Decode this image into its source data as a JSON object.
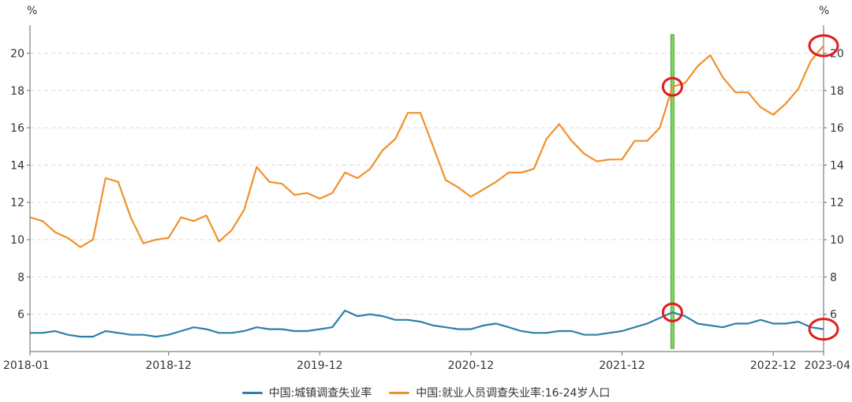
{
  "chart_data": {
    "type": "line",
    "y_unit_left": "%",
    "y_unit_right": "%",
    "ylim": [
      4,
      21.5
    ],
    "y_ticks": [
      6,
      8,
      10,
      12,
      14,
      16,
      18,
      20
    ],
    "x_tick_labels": [
      {
        "label": "2018-01",
        "index": 0
      },
      {
        "label": "2018-12",
        "index": 11
      },
      {
        "label": "2019-12",
        "index": 23
      },
      {
        "label": "2020-12",
        "index": 35
      },
      {
        "label": "2021-12",
        "index": 47
      },
      {
        "label": "2022-12",
        "index": 59
      },
      {
        "label": "2023-04",
        "index": 63
      }
    ],
    "x": [
      "2018-01",
      "2018-02",
      "2018-03",
      "2018-04",
      "2018-05",
      "2018-06",
      "2018-07",
      "2018-08",
      "2018-09",
      "2018-10",
      "2018-11",
      "2018-12",
      "2019-01",
      "2019-02",
      "2019-03",
      "2019-04",
      "2019-05",
      "2019-06",
      "2019-07",
      "2019-08",
      "2019-09",
      "2019-10",
      "2019-11",
      "2019-12",
      "2020-01",
      "2020-02",
      "2020-03",
      "2020-04",
      "2020-05",
      "2020-06",
      "2020-07",
      "2020-08",
      "2020-09",
      "2020-10",
      "2020-11",
      "2020-12",
      "2021-01",
      "2021-02",
      "2021-03",
      "2021-04",
      "2021-05",
      "2021-06",
      "2021-07",
      "2021-08",
      "2021-09",
      "2021-10",
      "2021-11",
      "2021-12",
      "2022-01",
      "2022-02",
      "2022-03",
      "2022-04",
      "2022-05",
      "2022-06",
      "2022-07",
      "2022-08",
      "2022-09",
      "2022-10",
      "2022-11",
      "2022-12",
      "2023-01",
      "2023-02",
      "2023-03",
      "2023-04"
    ],
    "series": [
      {
        "name": "中国:城镇调查失业率",
        "color": "#2e7fa6",
        "values": [
          5.0,
          5.0,
          5.1,
          4.9,
          4.8,
          4.8,
          5.1,
          5.0,
          4.9,
          4.9,
          4.8,
          4.9,
          5.1,
          5.3,
          5.2,
          5.0,
          5.0,
          5.1,
          5.3,
          5.2,
          5.2,
          5.1,
          5.1,
          5.2,
          5.3,
          6.2,
          5.9,
          6.0,
          5.9,
          5.7,
          5.7,
          5.6,
          5.4,
          5.3,
          5.2,
          5.2,
          5.4,
          5.5,
          5.3,
          5.1,
          5.0,
          5.0,
          5.1,
          5.1,
          4.9,
          4.9,
          5.0,
          5.1,
          5.3,
          5.5,
          5.8,
          6.1,
          5.9,
          5.5,
          5.4,
          5.3,
          5.5,
          5.5,
          5.7,
          5.5,
          5.5,
          5.6,
          5.3,
          5.2
        ]
      },
      {
        "name": "中国:就业人员调查失业率:16-24岁人口",
        "color": "#f0902c",
        "values": [
          11.2,
          11.0,
          10.4,
          10.1,
          9.6,
          10.0,
          13.3,
          13.1,
          11.2,
          9.8,
          10.0,
          10.1,
          11.2,
          11.0,
          11.3,
          9.9,
          10.5,
          11.6,
          13.9,
          13.1,
          13.0,
          12.4,
          12.5,
          12.2,
          12.5,
          13.6,
          13.3,
          13.8,
          14.8,
          15.4,
          16.8,
          16.8,
          15.0,
          13.2,
          12.8,
          12.3,
          12.7,
          13.1,
          13.6,
          13.6,
          13.8,
          15.4,
          16.2,
          15.3,
          14.6,
          14.2,
          14.3,
          14.3,
          15.3,
          15.3,
          16.0,
          18.2,
          18.4,
          19.3,
          19.9,
          18.7,
          17.9,
          17.9,
          17.1,
          16.7,
          17.3,
          18.1,
          19.6,
          20.4
        ]
      }
    ],
    "annotations": {
      "highlight_index": 51,
      "circle_indices_series1": [
        51,
        63
      ],
      "circle_indices_series2": [
        51,
        63
      ]
    },
    "grid": true,
    "legend_position": "bottom"
  },
  "legend": {
    "item1": "中国:城镇调查失业率",
    "item2": "中国:就业人员调查失业率:16-24岁人口"
  }
}
